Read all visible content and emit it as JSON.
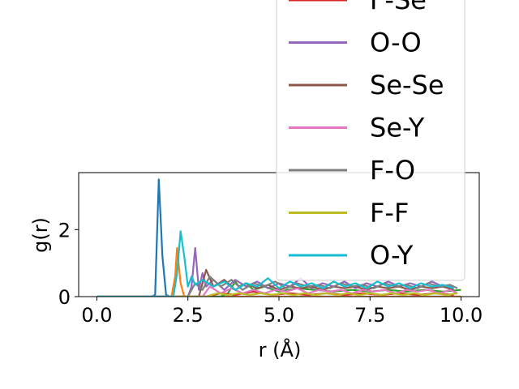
{
  "chart_data": {
    "type": "line",
    "xlabel": "r (Å)",
    "ylabel": "g(r)",
    "xlim": [
      -0.5,
      10.5
    ],
    "ylim": [
      0,
      3.7
    ],
    "xticks": [
      0.0,
      2.5,
      5.0,
      7.5,
      10.0
    ],
    "xtick_labels": [
      "0.0",
      "2.5",
      "5.0",
      "7.5",
      "10.0"
    ],
    "yticks": [
      0,
      2
    ],
    "ytick_labels": [
      "0",
      "2"
    ],
    "grid": false,
    "legend_placement": "upper right, extends beyond axes",
    "legend_partial_label": "F-Se",
    "series": [
      {
        "color": "#1f77b4",
        "x": [
          0.0,
          1.5,
          1.6,
          1.7,
          1.8,
          1.9,
          2.0,
          10.0
        ],
        "y": [
          0,
          0,
          0.05,
          3.5,
          1.2,
          0.05,
          0,
          0
        ]
      },
      {
        "color": "#ff7f0e",
        "x": [
          0.0,
          2.05,
          2.15,
          2.2,
          2.3,
          2.4,
          10.0
        ],
        "y": [
          0,
          0,
          0.6,
          1.45,
          0.4,
          0,
          0
        ]
      },
      {
        "color": "#2ca02c",
        "x": [
          0.0,
          3.4,
          3.6,
          3.8,
          3.9,
          4.1,
          4.3,
          4.6,
          5.0,
          5.5,
          6.0,
          6.5,
          7.0,
          7.5,
          8.0,
          8.5,
          9.0,
          9.5,
          10.0
        ],
        "y": [
          0,
          0,
          0.1,
          0.45,
          0.3,
          0.4,
          0.2,
          0.3,
          0.15,
          0.25,
          0.2,
          0.15,
          0.2,
          0.15,
          0.2,
          0.15,
          0.2,
          0.15,
          0.2
        ]
      },
      {
        "name": "F-Se",
        "color": "#d62728",
        "x": [
          0.0,
          3.0,
          3.4,
          3.8,
          4.3,
          4.8,
          5.3,
          5.8,
          6.3,
          6.8,
          7.3,
          7.8,
          8.3,
          8.8,
          9.3,
          9.8
        ],
        "y": [
          0,
          0,
          0.1,
          0.05,
          0.15,
          0.05,
          0.1,
          0.05,
          0.1,
          0.05,
          0.1,
          0.05,
          0.1,
          0.05,
          0.1,
          0.05
        ]
      },
      {
        "name": "O-O",
        "color": "#9467bd",
        "x": [
          0.0,
          2.5,
          2.6,
          2.7,
          2.8,
          2.9,
          3.0,
          3.2,
          3.5,
          3.8,
          4.1,
          4.4,
          4.7,
          5.0,
          5.3,
          5.6,
          5.9,
          6.2,
          6.5,
          6.8,
          7.1,
          7.4,
          7.7,
          8.0,
          8.3,
          8.6,
          8.9,
          9.2,
          9.5,
          9.8
        ],
        "y": [
          0,
          0,
          0.3,
          1.45,
          0.2,
          0.7,
          0.3,
          0.5,
          0.2,
          0.5,
          0.3,
          0.45,
          0.25,
          0.4,
          0.3,
          0.55,
          0.25,
          0.4,
          0.3,
          0.45,
          0.25,
          0.4,
          0.3,
          0.45,
          0.3,
          0.4,
          0.3,
          0.45,
          0.3,
          0.3
        ]
      },
      {
        "name": "Se-Se",
        "color": "#8c564b",
        "x": [
          0.0,
          2.8,
          3.0,
          3.2,
          3.5,
          3.8,
          4.1,
          4.4,
          4.7,
          5.0,
          5.3,
          5.6,
          5.9,
          6.2,
          6.5,
          6.8,
          7.1,
          7.4,
          7.7,
          8.0,
          8.3,
          8.6,
          8.9,
          9.2,
          9.5,
          9.8
        ],
        "y": [
          0,
          0,
          0.8,
          0.3,
          0.5,
          0.2,
          0.4,
          0.25,
          0.35,
          0.2,
          0.3,
          0.25,
          0.3,
          0.2,
          0.3,
          0.25,
          0.3,
          0.2,
          0.3,
          0.25,
          0.3,
          0.2,
          0.3,
          0.25,
          0.3,
          0.2
        ]
      },
      {
        "name": "Se-Y",
        "color": "#e377c2",
        "x": [
          0.0,
          2.9,
          3.1,
          3.4,
          3.7,
          4.0,
          4.3,
          4.6,
          4.9,
          5.2,
          5.5,
          5.8,
          6.1,
          6.4,
          6.7,
          7.0,
          7.3,
          7.6,
          7.9,
          8.2,
          8.5,
          8.8,
          9.1,
          9.4,
          9.7,
          9.9
        ],
        "y": [
          0,
          0,
          0.3,
          0.1,
          0.25,
          0.1,
          0.2,
          0.1,
          0.2,
          0.15,
          0.25,
          0.1,
          0.2,
          0.15,
          0.2,
          0.1,
          0.2,
          0.15,
          0.2,
          0.1,
          0.2,
          0.15,
          0.2,
          0.1,
          0.2,
          0.1
        ]
      },
      {
        "name": "F-O",
        "color": "#7f7f7f",
        "x": [
          0.0,
          2.5,
          2.7,
          2.9,
          3.1,
          3.4,
          3.7,
          4.0,
          4.3,
          4.6,
          4.9,
          5.2,
          5.5,
          5.8,
          6.1,
          6.4,
          6.7,
          7.0,
          7.3,
          7.6,
          7.9,
          8.2,
          8.5,
          8.8,
          9.1,
          9.4,
          9.7,
          9.9
        ],
        "y": [
          0,
          0,
          0.4,
          0.2,
          0.6,
          0.3,
          0.5,
          0.2,
          0.4,
          0.3,
          0.45,
          0.25,
          0.4,
          0.3,
          0.35,
          0.25,
          0.4,
          0.3,
          0.35,
          0.25,
          0.4,
          0.3,
          0.35,
          0.25,
          0.4,
          0.3,
          0.35,
          0.25
        ]
      },
      {
        "name": "F-F",
        "color": "#bcbd22",
        "x": [
          0.0,
          3.0,
          3.3,
          3.6,
          3.9,
          4.2,
          4.5,
          4.8,
          5.1,
          5.4,
          5.7,
          6.0,
          6.3,
          6.6,
          6.9,
          7.2,
          7.5,
          7.8,
          8.1,
          8.4,
          8.7,
          9.0,
          9.3,
          9.6,
          9.9
        ],
        "y": [
          0,
          0,
          0.1,
          0.05,
          0.1,
          0.05,
          0.1,
          0.05,
          0.1,
          0.05,
          0.1,
          0.05,
          0.1,
          0.05,
          0.1,
          0.05,
          0.1,
          0.05,
          0.1,
          0.05,
          0.1,
          0.05,
          0.1,
          0.05,
          0.1
        ]
      },
      {
        "name": "O-Y",
        "color": "#17becf",
        "x": [
          0.0,
          2.1,
          2.2,
          2.3,
          2.4,
          2.5,
          2.6,
          2.7,
          2.9,
          3.2,
          3.5,
          3.8,
          4.1,
          4.4,
          4.7,
          5.0,
          5.3,
          5.6,
          5.9,
          6.2,
          6.5,
          6.8,
          7.1,
          7.4,
          7.7,
          8.0,
          8.3,
          8.6,
          8.9,
          9.2,
          9.5,
          9.8
        ],
        "y": [
          0,
          0,
          0.7,
          1.95,
          1.2,
          0.3,
          0.6,
          0.35,
          0.5,
          0.3,
          0.45,
          0.2,
          0.4,
          0.3,
          0.55,
          0.25,
          0.45,
          0.3,
          0.4,
          0.25,
          0.45,
          0.3,
          0.4,
          0.25,
          0.45,
          0.3,
          0.4,
          0.25,
          0.4,
          0.3,
          0.35,
          0.25
        ]
      }
    ]
  }
}
